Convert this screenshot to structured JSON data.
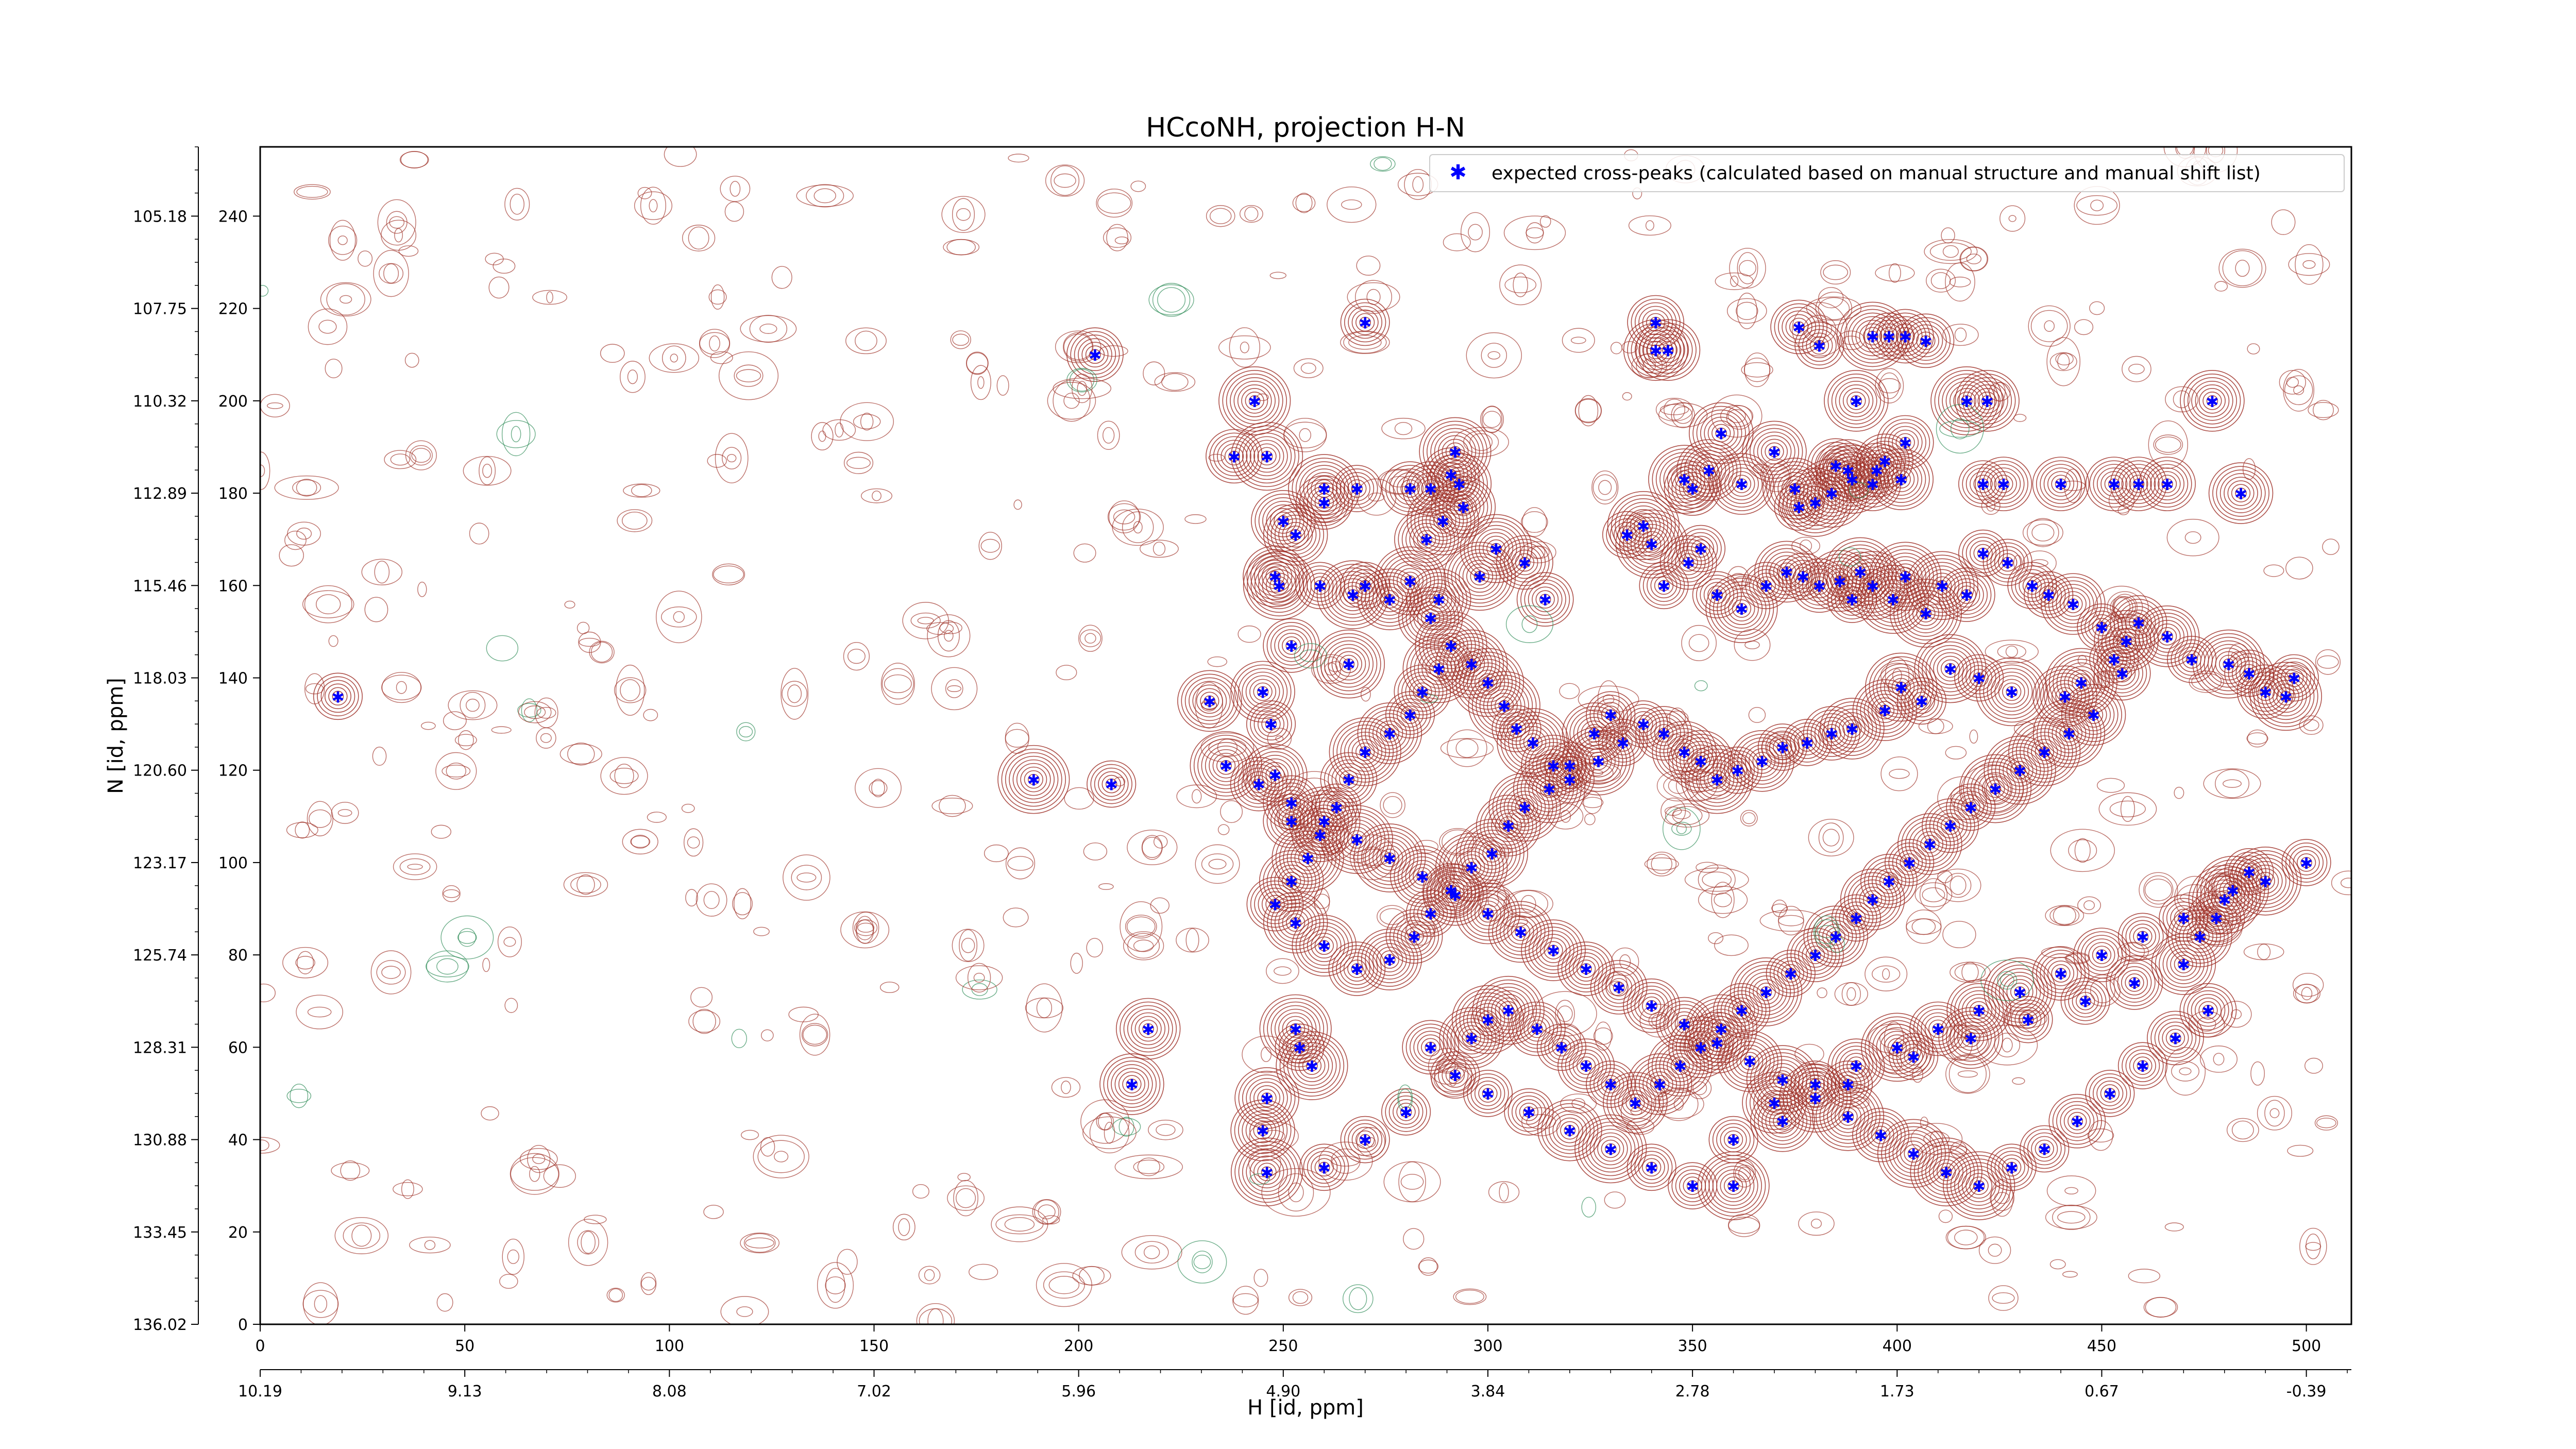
{
  "chart_data": {
    "type": "scatter",
    "title": "HCcoNH, projection H-N",
    "xlabel": "H [id, ppm]",
    "ylabel": "N [id, ppm]",
    "xlim": [
      0,
      511
    ],
    "ylim": [
      0,
      255
    ],
    "x_ticks": [
      0,
      50,
      100,
      150,
      200,
      250,
      300,
      350,
      400,
      450,
      500
    ],
    "y_ticks": [
      0,
      20,
      40,
      60,
      80,
      100,
      120,
      140,
      160,
      180,
      200,
      220,
      240
    ],
    "x_ppm_ticks": [
      {
        "pt": 0,
        "label": "10.19"
      },
      {
        "pt": 50,
        "label": "9.13"
      },
      {
        "pt": 100,
        "label": "8.08"
      },
      {
        "pt": 150,
        "label": "7.02"
      },
      {
        "pt": 200,
        "label": "5.96"
      },
      {
        "pt": 250,
        "label": "4.90"
      },
      {
        "pt": 300,
        "label": "3.84"
      },
      {
        "pt": 350,
        "label": "2.78"
      },
      {
        "pt": 400,
        "label": "1.73"
      },
      {
        "pt": 450,
        "label": "0.67"
      },
      {
        "pt": 500,
        "label": "-0.39"
      }
    ],
    "y_ppm_ticks": [
      {
        "pt": 0,
        "label": "136.02"
      },
      {
        "pt": 20,
        "label": "133.45"
      },
      {
        "pt": 40,
        "label": "130.88"
      },
      {
        "pt": 60,
        "label": "128.31"
      },
      {
        "pt": 80,
        "label": "125.74"
      },
      {
        "pt": 100,
        "label": "123.17"
      },
      {
        "pt": 120,
        "label": "120.60"
      },
      {
        "pt": 140,
        "label": "118.03"
      },
      {
        "pt": 160,
        "label": "115.46"
      },
      {
        "pt": 180,
        "label": "112.89"
      },
      {
        "pt": 200,
        "label": "110.32"
      },
      {
        "pt": 220,
        "label": "107.75"
      },
      {
        "pt": 240,
        "label": "105.18"
      }
    ],
    "legend": {
      "position": "top-right",
      "label": "expected cross-peaks (calculated based on manual structure and manual shift list)"
    },
    "colors": {
      "positive_contour": "#a0332a",
      "negative_contour": "#2e8b57",
      "peak": "#0000ff"
    },
    "series": [
      {
        "name": "expected cross-peaks (calculated based on manual structure and manual shift list)",
        "points": [
          [
            19,
            136
          ],
          [
            189,
            118
          ],
          [
            204,
            210
          ],
          [
            208,
            117
          ],
          [
            217,
            64
          ],
          [
            213,
            52
          ],
          [
            238,
            188
          ],
          [
            243,
            200
          ],
          [
            246,
            188
          ],
          [
            250,
            174
          ],
          [
            253,
            171
          ],
          [
            248,
            162
          ],
          [
            249,
            160
          ],
          [
            259,
            160
          ],
          [
            252,
            147
          ],
          [
            245,
            137
          ],
          [
            232,
            135
          ],
          [
            247,
            130
          ],
          [
            248,
            119
          ],
          [
            252,
            109
          ],
          [
            266,
            143
          ],
          [
            267,
            158
          ],
          [
            270,
            160
          ],
          [
            276,
            157
          ],
          [
            281,
            161
          ],
          [
            288,
            157
          ],
          [
            286,
            153
          ],
          [
            285,
            170
          ],
          [
            298,
            162
          ],
          [
            302,
            168
          ],
          [
            309,
            165
          ],
          [
            314,
            157
          ],
          [
            260,
            181
          ],
          [
            260,
            178
          ],
          [
            268,
            181
          ],
          [
            281,
            181
          ],
          [
            286,
            181
          ],
          [
            291,
            184
          ],
          [
            292,
            189
          ],
          [
            293,
            182
          ],
          [
            294,
            177
          ],
          [
            289,
            174
          ],
          [
            270,
            217
          ],
          [
            341,
            217
          ],
          [
            341,
            211
          ],
          [
            344,
            211
          ],
          [
            376,
            216
          ],
          [
            381,
            212
          ],
          [
            394,
            214
          ],
          [
            398,
            214
          ],
          [
            402,
            214
          ],
          [
            407,
            213
          ],
          [
            422,
            200
          ],
          [
            417,
            200
          ],
          [
            390,
            200
          ],
          [
            421,
            182
          ],
          [
            426,
            182
          ],
          [
            440,
            182
          ],
          [
            453,
            182
          ],
          [
            459,
            182
          ],
          [
            466,
            182
          ],
          [
            477,
            200
          ],
          [
            484,
            180
          ],
          [
            334,
            171
          ],
          [
            340,
            169
          ],
          [
            350,
            181
          ],
          [
            348,
            183
          ],
          [
            354,
            185
          ],
          [
            357,
            193
          ],
          [
            362,
            182
          ],
          [
            370,
            189
          ],
          [
            375,
            181
          ],
          [
            380,
            178
          ],
          [
            385,
            186
          ],
          [
            388,
            185
          ],
          [
            395,
            185
          ],
          [
            401,
            183
          ],
          [
            402,
            191
          ],
          [
            397,
            187
          ],
          [
            394,
            182
          ],
          [
            389,
            183
          ],
          [
            384,
            180
          ],
          [
            376,
            177
          ],
          [
            338,
            173
          ],
          [
            343,
            160
          ],
          [
            349,
            165
          ],
          [
            352,
            168
          ],
          [
            356,
            158
          ],
          [
            362,
            155
          ],
          [
            368,
            160
          ],
          [
            373,
            163
          ],
          [
            377,
            162
          ],
          [
            381,
            160
          ],
          [
            386,
            161
          ],
          [
            389,
            157
          ],
          [
            391,
            163
          ],
          [
            394,
            160
          ],
          [
            399,
            157
          ],
          [
            402,
            162
          ],
          [
            407,
            154
          ],
          [
            411,
            160
          ],
          [
            417,
            158
          ],
          [
            421,
            167
          ],
          [
            427,
            165
          ],
          [
            433,
            160
          ],
          [
            437,
            158
          ],
          [
            443,
            156
          ],
          [
            450,
            151
          ],
          [
            456,
            148
          ],
          [
            459,
            152
          ],
          [
            466,
            149
          ],
          [
            472,
            144
          ],
          [
            481,
            143
          ],
          [
            486,
            141
          ],
          [
            490,
            137
          ],
          [
            495,
            136
          ],
          [
            497,
            140
          ],
          [
            455,
            141
          ],
          [
            453,
            144
          ],
          [
            445,
            139
          ],
          [
            441,
            136
          ],
          [
            428,
            137
          ],
          [
            420,
            140
          ],
          [
            413,
            142
          ],
          [
            406,
            135
          ],
          [
            401,
            138
          ],
          [
            397,
            133
          ],
          [
            389,
            129
          ],
          [
            384,
            128
          ],
          [
            378,
            126
          ],
          [
            372,
            125
          ],
          [
            367,
            122
          ],
          [
            361,
            120
          ],
          [
            356,
            118
          ],
          [
            352,
            122
          ],
          [
            348,
            124
          ],
          [
            343,
            128
          ],
          [
            338,
            130
          ],
          [
            333,
            126
          ],
          [
            327,
            122
          ],
          [
            320,
            118
          ],
          [
            316,
            121
          ],
          [
            311,
            126
          ],
          [
            307,
            129
          ],
          [
            304,
            134
          ],
          [
            300,
            139
          ],
          [
            296,
            143
          ],
          [
            291,
            147
          ],
          [
            288,
            142
          ],
          [
            284,
            137
          ],
          [
            281,
            132
          ],
          [
            276,
            128
          ],
          [
            270,
            124
          ],
          [
            266,
            118
          ],
          [
            263,
            112
          ],
          [
            259,
            106
          ],
          [
            256,
            101
          ],
          [
            252,
            96
          ],
          [
            248,
            91
          ],
          [
            253,
            87
          ],
          [
            260,
            82
          ],
          [
            268,
            77
          ],
          [
            276,
            79
          ],
          [
            282,
            84
          ],
          [
            286,
            89
          ],
          [
            291,
            94
          ],
          [
            296,
            99
          ],
          [
            301,
            102
          ],
          [
            305,
            108
          ],
          [
            309,
            112
          ],
          [
            315,
            116
          ],
          [
            320,
            121
          ],
          [
            326,
            128
          ],
          [
            330,
            132
          ],
          [
            286,
            60
          ],
          [
            296,
            62
          ],
          [
            300,
            66
          ],
          [
            305,
            68
          ],
          [
            312,
            64
          ],
          [
            318,
            60
          ],
          [
            324,
            56
          ],
          [
            330,
            52
          ],
          [
            336,
            48
          ],
          [
            342,
            52
          ],
          [
            347,
            56
          ],
          [
            352,
            60
          ],
          [
            357,
            64
          ],
          [
            362,
            68
          ],
          [
            368,
            72
          ],
          [
            374,
            76
          ],
          [
            380,
            80
          ],
          [
            385,
            84
          ],
          [
            390,
            88
          ],
          [
            394,
            92
          ],
          [
            398,
            96
          ],
          [
            403,
            100
          ],
          [
            408,
            104
          ],
          [
            413,
            108
          ],
          [
            418,
            112
          ],
          [
            424,
            116
          ],
          [
            430,
            120
          ],
          [
            436,
            124
          ],
          [
            442,
            128
          ],
          [
            448,
            132
          ],
          [
            253,
            64
          ],
          [
            254,
            60
          ],
          [
            257,
            56
          ],
          [
            246,
            49
          ],
          [
            245,
            42
          ],
          [
            246,
            33
          ],
          [
            260,
            34
          ],
          [
            270,
            40
          ],
          [
            280,
            46
          ],
          [
            292,
            54
          ],
          [
            300,
            50
          ],
          [
            310,
            46
          ],
          [
            320,
            42
          ],
          [
            330,
            38
          ],
          [
            340,
            34
          ],
          [
            350,
            30
          ],
          [
            360,
            40
          ],
          [
            370,
            48
          ],
          [
            380,
            52
          ],
          [
            390,
            56
          ],
          [
            400,
            60
          ],
          [
            410,
            64
          ],
          [
            420,
            68
          ],
          [
            430,
            72
          ],
          [
            440,
            76
          ],
          [
            450,
            80
          ],
          [
            460,
            84
          ],
          [
            470,
            88
          ],
          [
            480,
            92
          ],
          [
            490,
            96
          ],
          [
            500,
            100
          ],
          [
            360,
            30
          ],
          [
            372,
            44
          ],
          [
            388,
            52
          ],
          [
            404,
            58
          ],
          [
            418,
            62
          ],
          [
            432,
            66
          ],
          [
            446,
            70
          ],
          [
            458,
            74
          ],
          [
            470,
            78
          ],
          [
            474,
            84
          ],
          [
            478,
            88
          ],
          [
            482,
            94
          ],
          [
            486,
            98
          ],
          [
            476,
            68
          ],
          [
            468,
            62
          ],
          [
            460,
            56
          ],
          [
            452,
            50
          ],
          [
            444,
            44
          ],
          [
            436,
            38
          ],
          [
            428,
            34
          ],
          [
            420,
            30
          ],
          [
            412,
            33
          ],
          [
            404,
            37
          ],
          [
            396,
            41
          ],
          [
            388,
            45
          ],
          [
            380,
            49
          ],
          [
            372,
            53
          ],
          [
            364,
            57
          ],
          [
            356,
            61
          ],
          [
            348,
            65
          ],
          [
            340,
            69
          ],
          [
            332,
            73
          ],
          [
            324,
            77
          ],
          [
            316,
            81
          ],
          [
            308,
            85
          ],
          [
            300,
            89
          ],
          [
            292,
            93
          ],
          [
            284,
            97
          ],
          [
            276,
            101
          ],
          [
            268,
            105
          ],
          [
            260,
            109
          ],
          [
            252,
            113
          ],
          [
            244,
            117
          ],
          [
            236,
            121
          ]
        ]
      }
    ]
  }
}
